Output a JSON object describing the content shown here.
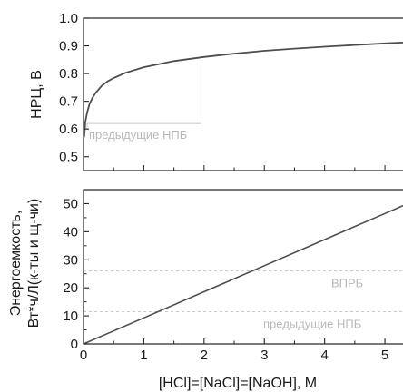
{
  "chart_data": [
    {
      "type": "line",
      "ylabel": "НРЦ, В",
      "xlim": [
        0,
        5.3
      ],
      "ylim": [
        0.45,
        1.0
      ],
      "yticks": [
        0.5,
        0.6,
        0.7,
        0.8,
        0.9,
        1.0
      ],
      "ytick_labels": [
        "0.5",
        "0.6",
        "0.7",
        "0.8",
        "0.9",
        "1.0"
      ],
      "grid": false,
      "series": [
        {
          "color": "#4d4d4d",
          "x": [
            0.01,
            0.03,
            0.06,
            0.1,
            0.15,
            0.2,
            0.3,
            0.4,
            0.5,
            0.7,
            1.0,
            1.5,
            2.0,
            2.5,
            3.0,
            3.5,
            4.0,
            4.5,
            5.0,
            5.3
          ],
          "y": [
            0.57,
            0.625,
            0.66,
            0.69,
            0.713,
            0.73,
            0.755,
            0.772,
            0.784,
            0.803,
            0.823,
            0.845,
            0.86,
            0.872,
            0.882,
            0.89,
            0.897,
            0.903,
            0.909,
            0.912
          ]
        }
      ],
      "annotations": [
        {
          "text": "предыдущие НПБ",
          "x_range": [
            0.06,
            1.95
          ],
          "y": 0.62,
          "color": "#c8c8c8"
        }
      ]
    },
    {
      "type": "line",
      "xlabel": "[HCl]=[NaCl]=[NaOH], M",
      "ylabel": [
        "Энергоемкость,",
        "Вт*ч/Л(к-ты и щ-чи)"
      ],
      "xlim": [
        0,
        5.3
      ],
      "ylim": [
        0,
        55
      ],
      "xticks": [
        0,
        1,
        2,
        3,
        4,
        5
      ],
      "xtick_labels": [
        "0",
        "1",
        "2",
        "3",
        "4",
        "5"
      ],
      "yticks": [
        0,
        10,
        20,
        30,
        40,
        50
      ],
      "ytick_labels": [
        "0",
        "10",
        "20",
        "30",
        "40",
        "50"
      ],
      "grid": false,
      "series": [
        {
          "color": "#4d4d4d",
          "x": [
            0,
            1,
            2,
            3,
            4,
            5,
            5.3
          ],
          "y": [
            0,
            9.3,
            18.6,
            27.9,
            37.2,
            46.5,
            49.3
          ]
        }
      ],
      "reference_lines": [
        {
          "label": "ВПРБ",
          "y": 26,
          "color": "#c8c8c8"
        },
        {
          "label": "предыдущие НПБ",
          "y": 11.5,
          "color": "#c8c8c8"
        }
      ]
    }
  ]
}
